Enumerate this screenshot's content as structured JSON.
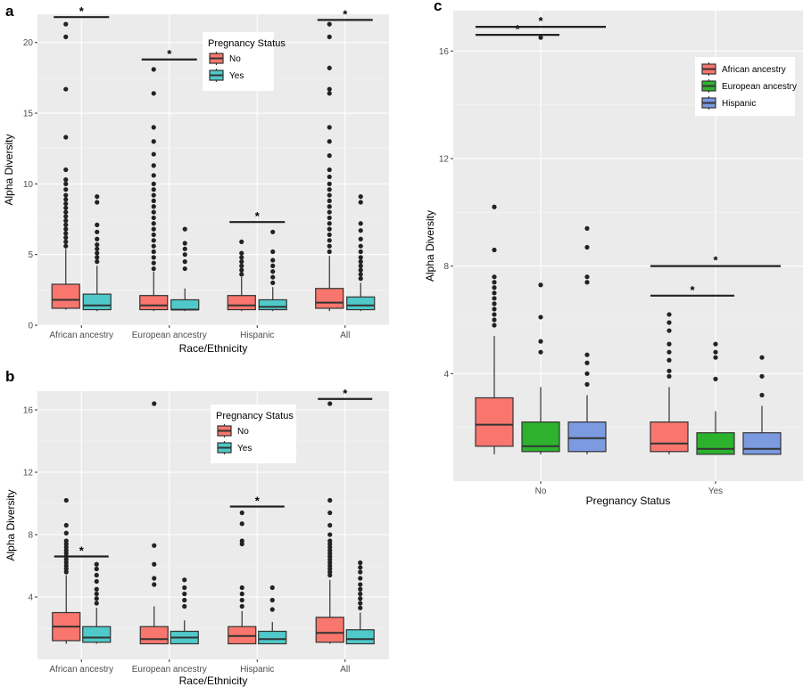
{
  "panels": {
    "a": {
      "label": "a"
    },
    "b": {
      "label": "b"
    },
    "c": {
      "label": "c"
    }
  },
  "colors": {
    "no": "#f8766d",
    "yes": "#4fc9c9",
    "african": "#f8766d",
    "european": "#2db22d",
    "hispanic": "#7b9ae0"
  },
  "chart_data": [
    {
      "id": "a",
      "type": "box",
      "title": "",
      "xlabel": "Race/Ethnicity",
      "ylabel": "Alpha Diversity",
      "ylim": [
        0,
        22
      ],
      "yticks": [
        0,
        5,
        10,
        15,
        20
      ],
      "categories": [
        "African ancestry",
        "European ancestry",
        "Hispanic",
        "All"
      ],
      "legend": {
        "title": "Pregnancy Status",
        "position": "top-right",
        "entries": [
          "No",
          "Yes"
        ]
      },
      "series": [
        {
          "name": "No",
          "color": "#f8766d",
          "boxes": [
            {
              "low": 1.1,
              "q1": 1.2,
              "median": 1.8,
              "q3": 2.9,
              "high": 5.4,
              "outliers": [
                5.6,
                5.9,
                6.2,
                6.5,
                6.8,
                7.1,
                7.4,
                7.7,
                8.0,
                8.3,
                8.6,
                8.9,
                9.2,
                9.6,
                10.0,
                10.3,
                11.0,
                13.3,
                16.7,
                20.4,
                21.3
              ]
            },
            {
              "low": 1.0,
              "q1": 1.1,
              "median": 1.4,
              "q3": 2.1,
              "high": 3.8,
              "outliers": [
                4.0,
                4.4,
                4.8,
                5.2,
                5.6,
                6.0,
                6.4,
                6.8,
                7.2,
                7.6,
                8.0,
                8.4,
                8.8,
                9.2,
                9.6,
                10.0,
                10.6,
                11.3,
                12.1,
                13.0,
                14.0,
                16.4,
                18.1
              ]
            },
            {
              "low": 1.0,
              "q1": 1.1,
              "median": 1.4,
              "q3": 2.1,
              "high": 3.4,
              "outliers": [
                3.6,
                3.9,
                4.2,
                4.5,
                4.8,
                5.1,
                5.9
              ]
            },
            {
              "low": 1.0,
              "q1": 1.2,
              "median": 1.6,
              "q3": 2.6,
              "high": 4.9,
              "outliers": [
                5.2,
                5.6,
                6.0,
                6.4,
                6.8,
                7.2,
                7.6,
                8.0,
                8.4,
                8.8,
                9.2,
                9.6,
                10.0,
                10.5,
                11.0,
                12.0,
                13.0,
                14.0,
                16.4,
                16.7,
                18.2,
                20.4,
                21.3
              ]
            }
          ]
        },
        {
          "name": "Yes",
          "color": "#4fc9c9",
          "boxes": [
            {
              "low": 1.0,
              "q1": 1.1,
              "median": 1.4,
              "q3": 2.2,
              "high": 4.2,
              "outliers": [
                4.5,
                4.8,
                5.1,
                5.4,
                5.7,
                6.1,
                6.6,
                7.1,
                8.7,
                9.1
              ]
            },
            {
              "low": 1.0,
              "q1": 1.1,
              "median": 1.1,
              "q3": 1.8,
              "high": 2.6,
              "outliers": [
                4.0,
                4.5,
                5.0,
                5.4,
                5.8,
                6.8
              ]
            },
            {
              "low": 1.0,
              "q1": 1.1,
              "median": 1.3,
              "q3": 1.8,
              "high": 2.7,
              "outliers": [
                3.0,
                3.4,
                3.8,
                4.2,
                4.6,
                5.2,
                6.6
              ]
            },
            {
              "low": 1.0,
              "q1": 1.1,
              "median": 1.4,
              "q3": 2.0,
              "high": 3.0,
              "outliers": [
                3.3,
                3.6,
                3.9,
                4.2,
                4.5,
                4.8,
                5.2,
                5.6,
                6.1,
                6.7,
                7.2,
                8.7,
                9.1
              ]
            }
          ]
        }
      ],
      "significance": [
        {
          "text": "*",
          "category": 0,
          "y": 21.8
        },
        {
          "text": "*",
          "category": 1,
          "y": 18.8
        },
        {
          "text": "*",
          "category": 2,
          "y": 7.3
        },
        {
          "text": "*",
          "category": 3,
          "y": 21.6
        }
      ]
    },
    {
      "id": "b",
      "type": "box",
      "title": "",
      "xlabel": "Race/Ethnicity",
      "ylabel": "Alpha Diversity",
      "ylim": [
        0,
        17.2
      ],
      "yticks": [
        4,
        8,
        12,
        16
      ],
      "categories": [
        "African ancestry",
        "European ancestry",
        "Hispanic",
        "All"
      ],
      "legend": {
        "title": "Pregnancy Status",
        "position": "top-right",
        "entries": [
          "No",
          "Yes"
        ]
      },
      "series": [
        {
          "name": "No",
          "color": "#f8766d",
          "boxes": [
            {
              "low": 1.0,
              "q1": 1.2,
              "median": 2.1,
              "q3": 3.0,
              "high": 5.4,
              "outliers": [
                5.6,
                5.8,
                6.0,
                6.2,
                6.4,
                6.6,
                6.8,
                7.0,
                7.2,
                7.4,
                7.6,
                8.1,
                8.6,
                10.2
              ]
            },
            {
              "low": 1.0,
              "q1": 1.0,
              "median": 1.3,
              "q3": 2.1,
              "high": 3.4,
              "outliers": [
                4.8,
                5.2,
                6.1,
                7.3,
                16.4
              ]
            },
            {
              "low": 1.0,
              "q1": 1.0,
              "median": 1.5,
              "q3": 2.1,
              "high": 3.1,
              "outliers": [
                3.4,
                3.8,
                4.2,
                4.6,
                7.4,
                7.6,
                8.7,
                9.4
              ]
            },
            {
              "low": 1.0,
              "q1": 1.1,
              "median": 1.7,
              "q3": 2.7,
              "high": 5.1,
              "outliers": [
                5.4,
                5.6,
                5.8,
                6.0,
                6.2,
                6.4,
                6.6,
                6.8,
                7.0,
                7.2,
                7.4,
                7.6,
                8.0,
                8.6,
                9.4,
                10.2,
                16.4
              ]
            }
          ]
        },
        {
          "name": "Yes",
          "color": "#4fc9c9",
          "boxes": [
            {
              "low": 1.0,
              "q1": 1.1,
              "median": 1.4,
              "q3": 2.1,
              "high": 3.3,
              "outliers": [
                3.6,
                3.9,
                4.2,
                4.5,
                5.0,
                5.4,
                5.8,
                6.1
              ]
            },
            {
              "low": 1.0,
              "q1": 1.0,
              "median": 1.4,
              "q3": 1.8,
              "high": 2.5,
              "outliers": [
                3.4,
                3.8,
                4.2,
                4.6,
                5.1
              ]
            },
            {
              "low": 1.0,
              "q1": 1.0,
              "median": 1.3,
              "q3": 1.8,
              "high": 2.4,
              "outliers": [
                3.2,
                3.8,
                4.6
              ]
            },
            {
              "low": 1.0,
              "q1": 1.0,
              "median": 1.3,
              "q3": 1.9,
              "high": 3.0,
              "outliers": [
                3.3,
                3.6,
                3.9,
                4.2,
                4.5,
                4.8,
                5.2,
                5.6,
                5.9,
                6.2
              ]
            }
          ]
        }
      ],
      "significance": [
        {
          "text": "*",
          "category": 0,
          "y": 6.6
        },
        {
          "text": "*",
          "category": 2,
          "y": 9.8
        },
        {
          "text": "*",
          "category": 3,
          "y": 16.7
        }
      ]
    },
    {
      "id": "c",
      "type": "box",
      "title": "",
      "xlabel": "Pregnancy Status",
      "ylabel": "Alpha Diversity",
      "ylim": [
        0,
        17.5
      ],
      "yticks": [
        4,
        8,
        12,
        16
      ],
      "categories": [
        "No",
        "Yes"
      ],
      "legend": {
        "title": "",
        "position": "top-right",
        "entries": [
          "African ancestry",
          "European ancestry",
          "Hispanic"
        ]
      },
      "series": [
        {
          "name": "African ancestry",
          "color": "#f8766d",
          "boxes": [
            {
              "low": 1.0,
              "q1": 1.3,
              "median": 2.1,
              "q3": 3.1,
              "high": 5.4,
              "outliers": [
                5.8,
                6.0,
                6.2,
                6.4,
                6.6,
                6.8,
                7.0,
                7.2,
                7.4,
                7.6,
                8.6,
                10.2
              ]
            },
            {
              "low": 1.0,
              "q1": 1.1,
              "median": 1.4,
              "q3": 2.2,
              "high": 3.5,
              "outliers": [
                3.9,
                4.1,
                4.5,
                4.8,
                5.1,
                5.6,
                5.9,
                6.2
              ]
            }
          ]
        },
        {
          "name": "European ancestry",
          "color": "#2db22d",
          "boxes": [
            {
              "low": 1.0,
              "q1": 1.1,
              "median": 1.3,
              "q3": 2.2,
              "high": 3.5,
              "outliers": [
                4.8,
                5.2,
                6.1,
                7.3,
                16.5
              ]
            },
            {
              "low": 1.0,
              "q1": 1.0,
              "median": 1.2,
              "q3": 1.8,
              "high": 2.6,
              "outliers": [
                3.8,
                4.6,
                4.8,
                5.1
              ]
            }
          ]
        },
        {
          "name": "Hispanic",
          "color": "#7b9ae0",
          "boxes": [
            {
              "low": 1.0,
              "q1": 1.1,
              "median": 1.6,
              "q3": 2.2,
              "high": 3.2,
              "outliers": [
                3.6,
                4.0,
                4.4,
                4.7,
                7.4,
                7.6,
                8.7,
                9.4
              ]
            },
            {
              "low": 1.0,
              "q1": 1.0,
              "median": 1.2,
              "q3": 1.8,
              "high": 2.8,
              "outliers": [
                3.2,
                3.9,
                4.6
              ]
            }
          ]
        }
      ],
      "significance": [
        {
          "text": "*",
          "category": 0,
          "from": 0,
          "to": 1,
          "y": 16.6
        },
        {
          "text": "*",
          "category": 0,
          "from": 0,
          "to": 2,
          "y": 16.9
        },
        {
          "text": "*",
          "category": 1,
          "from": 0,
          "to": 1,
          "y": 6.9
        },
        {
          "text": "*",
          "category": 1,
          "from": 0,
          "to": 2,
          "y": 8.0
        }
      ]
    }
  ]
}
